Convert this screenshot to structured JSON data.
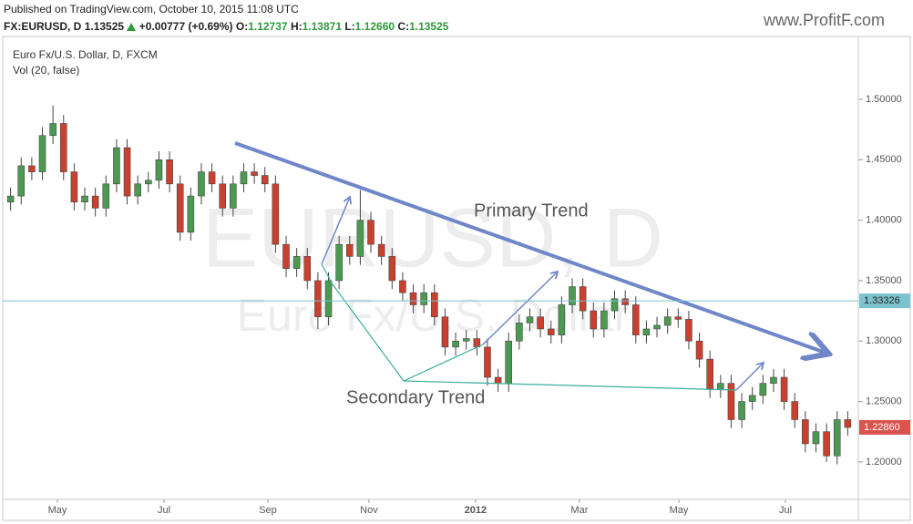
{
  "header": {
    "published": "Published on TradingView.com, October 10, 2015 11:08 UTC",
    "symbol": "FX:EURUSD, D",
    "last": "1.13525",
    "change": "+0.00777 (+0.69%)",
    "open_label": "O:",
    "open": "1.12737",
    "high_label": "H:",
    "high": "1.13871",
    "low_label": "L:",
    "low": "1.12660",
    "close_label": "C:",
    "close": "1.13525",
    "logo": "www.ProfitF.com"
  },
  "chart_data": {
    "type": "candlestick",
    "title": "Euro Fx/U.S. Dollar, D, FXCM",
    "subtitle": "Vol (20, false)",
    "watermark": [
      "EURUSD, D",
      "Euro Fx/U.S. Dollar"
    ],
    "annotations": [
      "Primary Trend",
      "Secondary Trend"
    ],
    "up_color": "#4c9a52",
    "down_color": "#c9402f",
    "open": [
      1.415,
      1.42,
      1.445,
      1.44,
      1.47,
      1.48,
      1.44,
      1.415,
      1.42,
      1.41,
      1.43,
      1.46,
      1.42,
      1.43,
      1.433,
      1.45,
      1.43,
      1.39,
      1.42,
      1.44,
      1.43,
      1.41,
      1.43,
      1.44,
      1.437,
      1.43,
      1.38,
      1.36,
      1.37,
      1.35,
      1.32,
      1.35,
      1.38,
      1.37,
      1.4,
      1.38,
      1.37,
      1.35,
      1.34,
      1.33,
      1.34,
      1.32,
      1.295,
      1.3,
      1.302,
      1.295,
      1.27,
      1.265,
      1.3,
      1.315,
      1.32,
      1.31,
      1.305,
      1.33,
      1.345,
      1.325,
      1.31,
      1.325,
      1.335,
      1.33,
      1.305,
      1.31,
      1.313,
      1.32,
      1.318,
      1.3,
      1.285,
      1.26,
      1.265,
      1.235,
      1.25,
      1.255,
      1.265,
      1.27,
      1.25,
      1.235,
      1.215,
      1.225,
      1.205,
      1.235
    ],
    "high": [
      1.427,
      1.452,
      1.452,
      1.477,
      1.495,
      1.487,
      1.447,
      1.427,
      1.427,
      1.437,
      1.467,
      1.467,
      1.437,
      1.44,
      1.457,
      1.457,
      1.437,
      1.427,
      1.447,
      1.447,
      1.437,
      1.437,
      1.447,
      1.447,
      1.444,
      1.437,
      1.387,
      1.377,
      1.377,
      1.357,
      1.357,
      1.387,
      1.387,
      1.425,
      1.407,
      1.387,
      1.377,
      1.357,
      1.347,
      1.347,
      1.347,
      1.327,
      1.307,
      1.309,
      1.309,
      1.302,
      1.277,
      1.307,
      1.322,
      1.327,
      1.327,
      1.317,
      1.337,
      1.352,
      1.352,
      1.332,
      1.332,
      1.342,
      1.342,
      1.337,
      1.317,
      1.32,
      1.327,
      1.327,
      1.325,
      1.307,
      1.292,
      1.272,
      1.272,
      1.257,
      1.262,
      1.272,
      1.277,
      1.277,
      1.257,
      1.242,
      1.232,
      1.232,
      1.242,
      1.242
    ],
    "low": [
      1.408,
      1.413,
      1.433,
      1.433,
      1.463,
      1.433,
      1.408,
      1.408,
      1.403,
      1.403,
      1.423,
      1.413,
      1.413,
      1.423,
      1.426,
      1.423,
      1.383,
      1.383,
      1.413,
      1.423,
      1.403,
      1.403,
      1.423,
      1.43,
      1.423,
      1.373,
      1.353,
      1.353,
      1.343,
      1.31,
      1.313,
      1.343,
      1.363,
      1.363,
      1.373,
      1.363,
      1.343,
      1.333,
      1.323,
      1.323,
      1.313,
      1.288,
      1.288,
      1.293,
      1.288,
      1.263,
      1.258,
      1.258,
      1.293,
      1.308,
      1.303,
      1.298,
      1.298,
      1.323,
      1.318,
      1.303,
      1.303,
      1.318,
      1.323,
      1.298,
      1.298,
      1.303,
      1.306,
      1.311,
      1.293,
      1.278,
      1.253,
      1.253,
      1.228,
      1.228,
      1.243,
      1.248,
      1.258,
      1.243,
      1.228,
      1.208,
      1.208,
      1.2,
      1.198,
      1.2216
    ],
    "close": [
      1.42,
      1.445,
      1.44,
      1.47,
      1.48,
      1.44,
      1.415,
      1.42,
      1.41,
      1.43,
      1.46,
      1.42,
      1.43,
      1.433,
      1.45,
      1.43,
      1.39,
      1.42,
      1.44,
      1.43,
      1.41,
      1.43,
      1.44,
      1.437,
      1.43,
      1.38,
      1.36,
      1.37,
      1.35,
      1.32,
      1.35,
      1.38,
      1.37,
      1.4,
      1.38,
      1.37,
      1.35,
      1.34,
      1.33,
      1.34,
      1.32,
      1.295,
      1.3,
      1.302,
      1.295,
      1.27,
      1.265,
      1.3,
      1.315,
      1.32,
      1.31,
      1.305,
      1.33,
      1.345,
      1.325,
      1.31,
      1.325,
      1.335,
      1.33,
      1.305,
      1.31,
      1.313,
      1.32,
      1.318,
      1.3,
      1.285,
      1.26,
      1.265,
      1.235,
      1.25,
      1.255,
      1.265,
      1.27,
      1.25,
      1.235,
      1.215,
      1.225,
      1.205,
      1.235,
      1.2286
    ],
    "xlim": [
      -1,
      80
    ],
    "xticks": [
      {
        "value": 4.42,
        "label": "May"
      },
      {
        "value": 14.48,
        "label": "Jul"
      },
      {
        "value": 24.28,
        "label": "Sep"
      },
      {
        "value": 33.82,
        "label": "Nov"
      },
      {
        "value": 43.88,
        "label": "2012"
      },
      {
        "value": 53.68,
        "label": "Mar"
      },
      {
        "value": 63.06,
        "label": "May"
      },
      {
        "value": 73.12,
        "label": "Jul"
      }
    ],
    "ylim": [
      1.169,
      1.552
    ],
    "yticks": [
      {
        "value": 1.2,
        "label": "1.20000"
      },
      {
        "value": 1.25,
        "label": "1.25000"
      },
      {
        "value": 1.3,
        "label": "1.30000"
      },
      {
        "value": 1.35,
        "label": "1.35000"
      },
      {
        "value": 1.4,
        "label": "1.40000"
      },
      {
        "value": 1.45,
        "label": "1.45000"
      },
      {
        "value": 1.5,
        "label": "1.50000"
      }
    ],
    "hline": {
      "value": 1.33326,
      "label": "1.33326",
      "color": "#7cc3cf"
    },
    "last_price": {
      "value": 1.2286,
      "label": "1.22860",
      "color": "#d9534f"
    }
  }
}
